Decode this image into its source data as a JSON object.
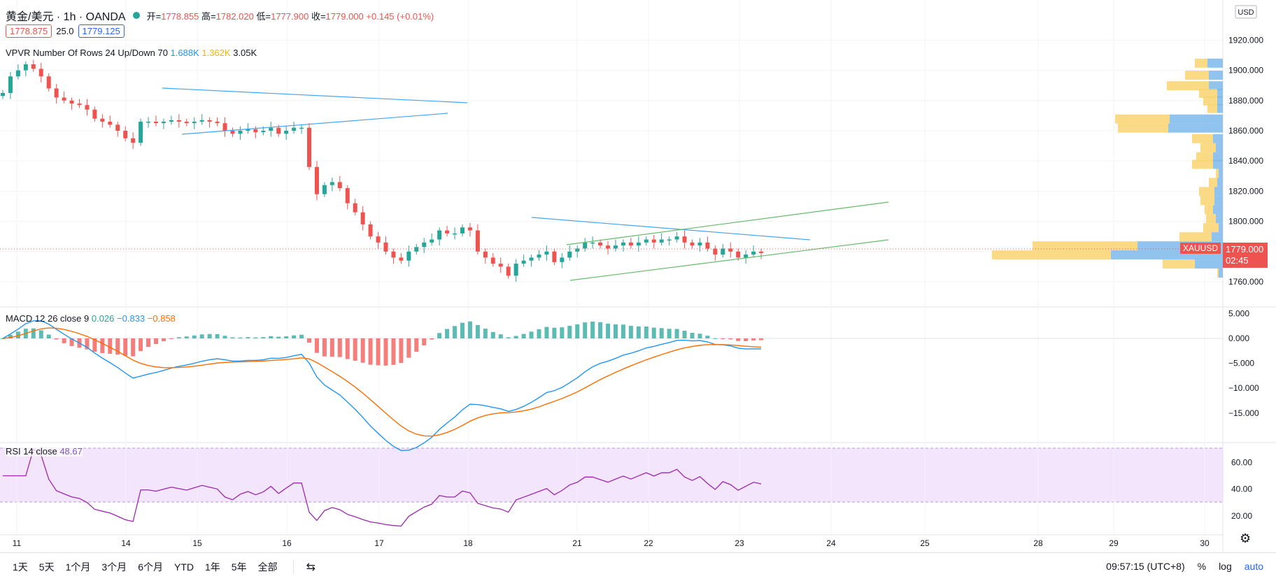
{
  "header": {
    "symbol": "黄金/美元 · 1h · OANDA",
    "ohlc_open_label": "开=",
    "ohlc_open": "1778.855",
    "ohlc_high_label": "高=",
    "ohlc_high": "1782.020",
    "ohlc_low_label": "低=",
    "ohlc_low": "1777.900",
    "ohlc_close_label": "收=",
    "ohlc_close": "1779.000",
    "change": "+0.145 (+0.01%)",
    "bid": "1778.875",
    "spread": "25.0",
    "ask": "1779.125"
  },
  "vpvr": {
    "label": "VPVR Number Of Rows 24 Up/Down 70",
    "up": "1.688K",
    "down": "1.362K",
    "total": "3.05K"
  },
  "macd": {
    "label": "MACD 12 26 close 9",
    "hist": "0.026",
    "macd": "−0.833",
    "signal": "−0.858"
  },
  "rsi": {
    "label": "RSI 14 close",
    "value": "48.67"
  },
  "price_axis": {
    "currency": "USD",
    "ticks": [
      "1920.000",
      "1900.000",
      "1880.000",
      "1860.000",
      "1840.000",
      "1820.000",
      "1800.000",
      "1780.000",
      "1760.000"
    ],
    "last_price": "1779.000",
    "countdown": "02:45",
    "symbol_tag": "XAUUSD"
  },
  "macd_axis": {
    "ticks": [
      "5.000",
      "0.000",
      "−5.000",
      "−10.000",
      "−15.000"
    ]
  },
  "rsi_axis": {
    "ticks": [
      "60.00",
      "40.00",
      "20.00"
    ]
  },
  "time_axis": {
    "labels": [
      "11",
      "14",
      "15",
      "16",
      "17",
      "18",
      "21",
      "22",
      "23",
      "24",
      "25",
      "28",
      "29",
      "30"
    ]
  },
  "bottom": {
    "ranges": [
      "1天",
      "5天",
      "1个月",
      "3个月",
      "6个月",
      "YTD",
      "1年",
      "5年",
      "全部"
    ],
    "compare_icon": "compare-icon",
    "clock": "09:57:15 (UTC+8)",
    "percent": "%",
    "log": "log",
    "auto": "auto"
  },
  "colors": {
    "up": "#26a69a",
    "down": "#ef5350",
    "macd": "#2196f3",
    "signal": "#ff6d00",
    "rsi": "#9c27b0",
    "vp_up": "#7db9ea",
    "vp_down": "#f9d46f"
  },
  "chart_data": {
    "type": "candlestick",
    "symbol": "XAUUSD",
    "interval": "1h",
    "ylim": [
      1750,
      1920
    ],
    "closes": [
      1885,
      1896,
      1900,
      1904,
      1901,
      1896,
      1888,
      1882,
      1880,
      1878,
      1877,
      1874,
      1868,
      1866,
      1864,
      1860,
      1855,
      1852,
      1866,
      1866,
      1865,
      1866,
      1867,
      1866,
      1865,
      1866,
      1867,
      1866,
      1865,
      1860,
      1858,
      1860,
      1861,
      1859,
      1860,
      1862,
      1858,
      1860,
      1862,
      1862,
      1836,
      1818,
      1824,
      1826,
      1822,
      1812,
      1806,
      1798,
      1790,
      1786,
      1780,
      1776,
      1774,
      1780,
      1783,
      1786,
      1788,
      1794,
      1792,
      1792,
      1796,
      1794,
      1780,
      1776,
      1772,
      1770,
      1764,
      1772,
      1774,
      1776,
      1778,
      1780,
      1773,
      1776,
      1780,
      1782,
      1786,
      1786,
      1784,
      1782,
      1784,
      1786,
      1784,
      1786,
      1788,
      1786,
      1788,
      1788,
      1790,
      1786,
      1784,
      1786,
      1782,
      1778,
      1782,
      1780,
      1776,
      1778,
      1780,
      1779
    ]
  }
}
